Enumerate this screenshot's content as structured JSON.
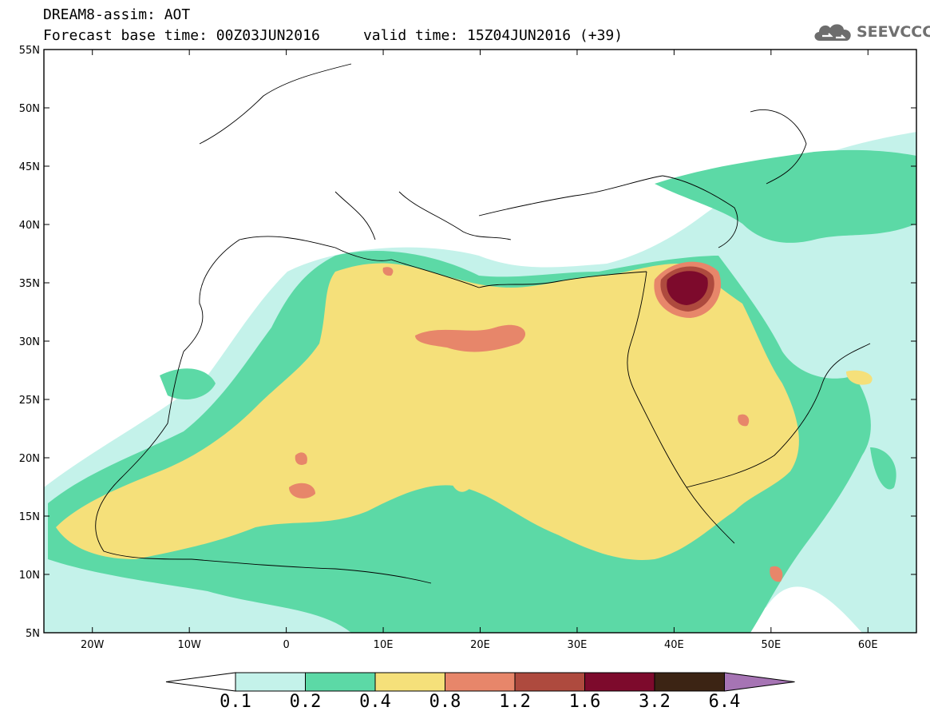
{
  "header": {
    "title_line1": "DREAM8-assim: AOT",
    "title_line2": "Forecast base time: 00Z03JUN2016     valid time: 15Z04JUN2016 (+39)",
    "logo_text": "SEEVCCC"
  },
  "map": {
    "variable": "AOT",
    "lat_range": [
      5,
      55
    ],
    "lon_range": [
      -25,
      65
    ],
    "lat_labels": [
      "5N",
      "10N",
      "15N",
      "20N",
      "25N",
      "30N",
      "35N",
      "40N",
      "45N",
      "50N",
      "55N"
    ],
    "lat_values": [
      5,
      10,
      15,
      20,
      25,
      30,
      35,
      40,
      45,
      50,
      55
    ],
    "lon_labels": [
      "20W",
      "10W",
      "0",
      "10E",
      "20E",
      "30E",
      "40E",
      "50E",
      "60E"
    ],
    "lon_values": [
      -20,
      -10,
      0,
      10,
      20,
      30,
      40,
      50,
      60
    ],
    "colors": {
      "c01": "#c4f2ea",
      "c02": "#5cd9a6",
      "c04": "#f5e07a",
      "c08": "#e7866a",
      "c12": "#ae4a3e",
      "c16": "#7d0a2c",
      "c32": "#3c2414",
      "c64": "#a674b4"
    }
  },
  "colorbar": {
    "labels": [
      "0.1",
      "0.2",
      "0.4",
      "0.8",
      "1.2",
      "1.6",
      "3.2",
      "6.4"
    ],
    "colors": [
      "#c4f2ea",
      "#5cd9a6",
      "#f5e07a",
      "#e7866a",
      "#ae4a3e",
      "#7d0a2c",
      "#3c2414"
    ],
    "low_extension_color": "#ffffff",
    "high_extension_color": "#a674b4"
  }
}
